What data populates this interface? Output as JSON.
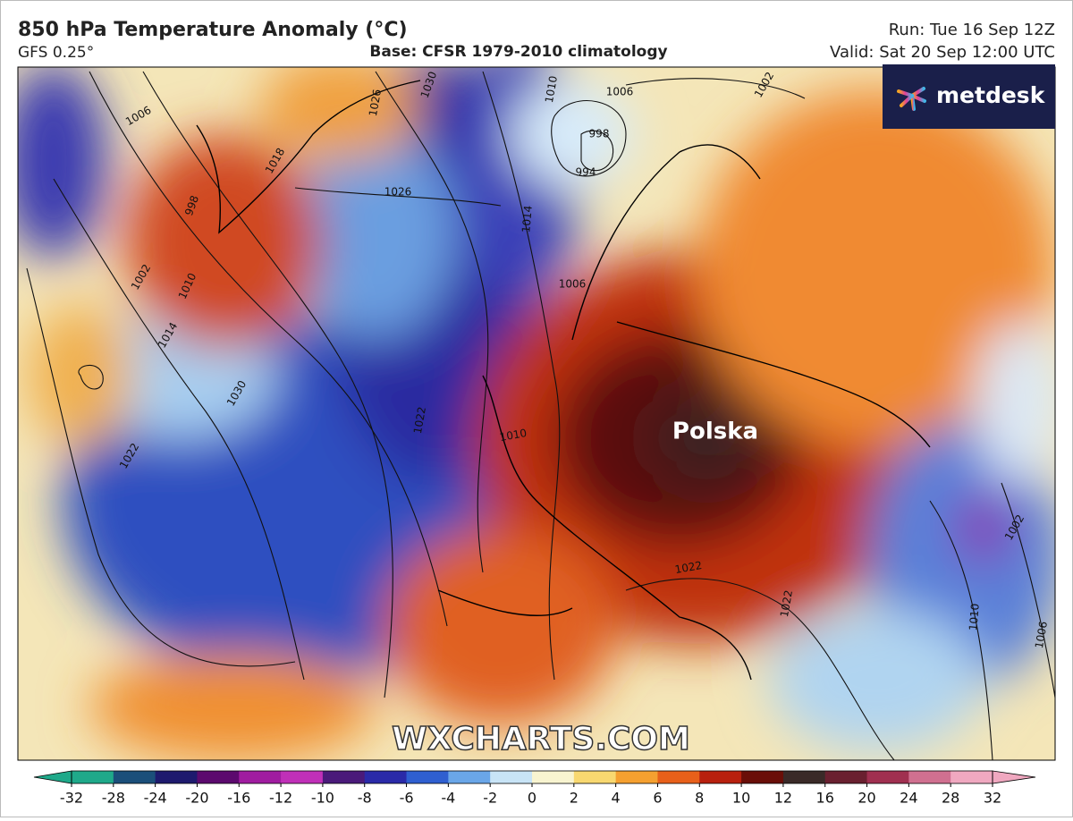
{
  "header": {
    "title": "850 hPa Temperature Anomaly (°C)",
    "model": "GFS 0.25°",
    "base": "Base: CFSR 1979-2010 climatology",
    "run": "Run: Tue 16 Sep 12Z",
    "valid": "Valid: Sat 20 Sep 12:00 UTC"
  },
  "logo": "metdesk",
  "map": {
    "label": "Polska",
    "watermark": "WXCHARTS.COM",
    "isobar_labels": [
      "1006",
      "998",
      "994",
      "1010",
      "1026",
      "1030",
      "1026",
      "1018",
      "1006",
      "998",
      "1002",
      "1010",
      "1014",
      "1030",
      "1022",
      "1022",
      "1014",
      "1006",
      "1010",
      "1022",
      "1022",
      "1010",
      "1006",
      "1002",
      "1002"
    ]
  },
  "colorbar": {
    "ticks": [
      -32,
      -28,
      -24,
      -20,
      -16,
      -12,
      -10,
      -8,
      -6,
      -4,
      -2,
      0,
      2,
      4,
      6,
      8,
      10,
      12,
      16,
      20,
      24,
      28,
      32
    ],
    "colors": [
      "#1fa98a",
      "#1b4f7a",
      "#1e1a6e",
      "#5c0a6e",
      "#a01ca0",
      "#c030b8",
      "#4a1a7a",
      "#2a2aa8",
      "#2f5fd0",
      "#6aa6e8",
      "#c8e4f6",
      "#f8f4d0",
      "#f8d870",
      "#f5a030",
      "#e8601a",
      "#b8200e",
      "#6a0e08",
      "#3a2a28",
      "#6a2030",
      "#a03050",
      "#d07090",
      "#f0a8c0"
    ]
  }
}
